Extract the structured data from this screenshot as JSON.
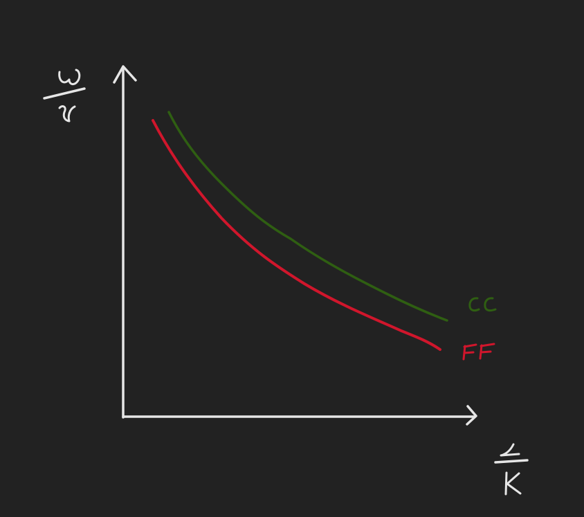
{
  "diagram": {
    "background": "#222222",
    "axis_color": "#e6e6e6",
    "y_axis_label": {
      "numerator": "w",
      "denominator": "r"
    },
    "x_axis_label": {
      "numerator": "L",
      "denominator": "K"
    },
    "curves": [
      {
        "name": "CC",
        "color": "#2f5f12"
      },
      {
        "name": "FF",
        "color": "#d0162c"
      }
    ]
  }
}
